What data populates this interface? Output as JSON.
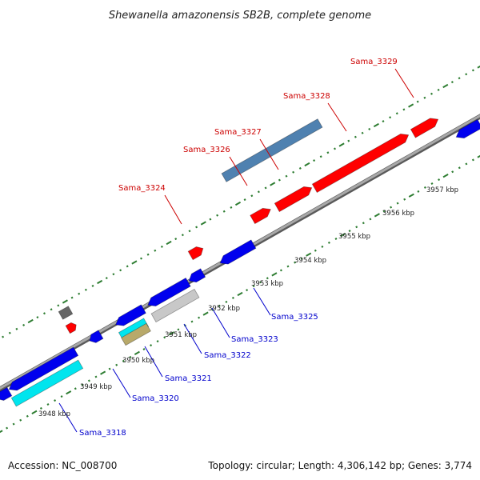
{
  "title": "Shewanella amazonensis SB2B, complete genome",
  "accession": "Accession: NC_008700",
  "summary": "Topology: circular; Length: 4,306,142 bp; Genes: 3,774",
  "colors": {
    "backbone": "#8a8a8a",
    "ticks": "#2e7d32",
    "label_top": "#cc0000",
    "label_bottom": "#0000cc",
    "forward": "#ff0000",
    "reverse": "#0000ee",
    "rna": "#00e5ee",
    "steelblue": "#4f81b0",
    "grey": "#c8c8c8",
    "darkgrey": "#666666",
    "olive": "#b8a96a"
  },
  "kbp_labels": [
    "3948 kbp",
    "3949 kbp",
    "3950 kbp",
    "3951 kbp",
    "3952 kbp",
    "3953 kbp",
    "3954 kbp",
    "3955 kbp",
    "3956 kbp",
    "3957 kbp"
  ],
  "top_labels": [
    "Sama_3324",
    "Sama_3326",
    "Sama_3327",
    "Sama_3328",
    "Sama_3329"
  ],
  "bottom_labels": [
    "Sama_3318",
    "Sama_3320",
    "Sama_3321",
    "Sama_3322",
    "Sama_3323",
    "Sama_3325"
  ]
}
